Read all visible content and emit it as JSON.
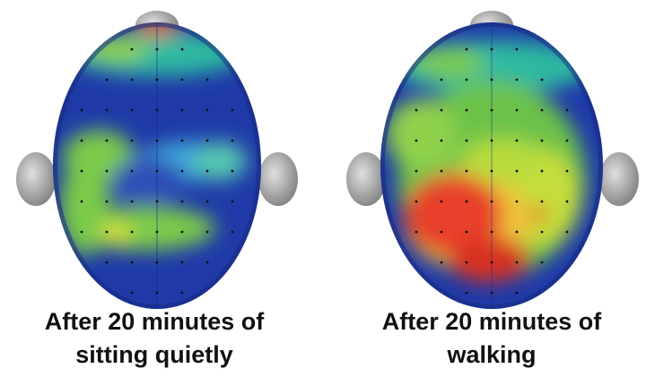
{
  "panels": [
    {
      "caption_lines": [
        "After 20 minutes of",
        "sitting quietly"
      ]
    },
    {
      "caption_lines": [
        "After 20 minutes of",
        "walking"
      ]
    }
  ]
}
